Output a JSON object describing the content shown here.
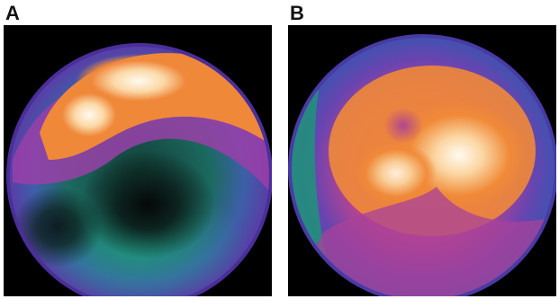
{
  "panels": [
    {
      "label": "A"
    },
    {
      "label": "B"
    }
  ],
  "colors": {
    "background": "#000000",
    "hot_white": "#fff8ea",
    "hot_orange": "#f08a38",
    "magenta": "#b8409a",
    "violet": "#5e3ea8",
    "teal": "#1f8f7a",
    "dark_teal": "#0d3b33"
  }
}
